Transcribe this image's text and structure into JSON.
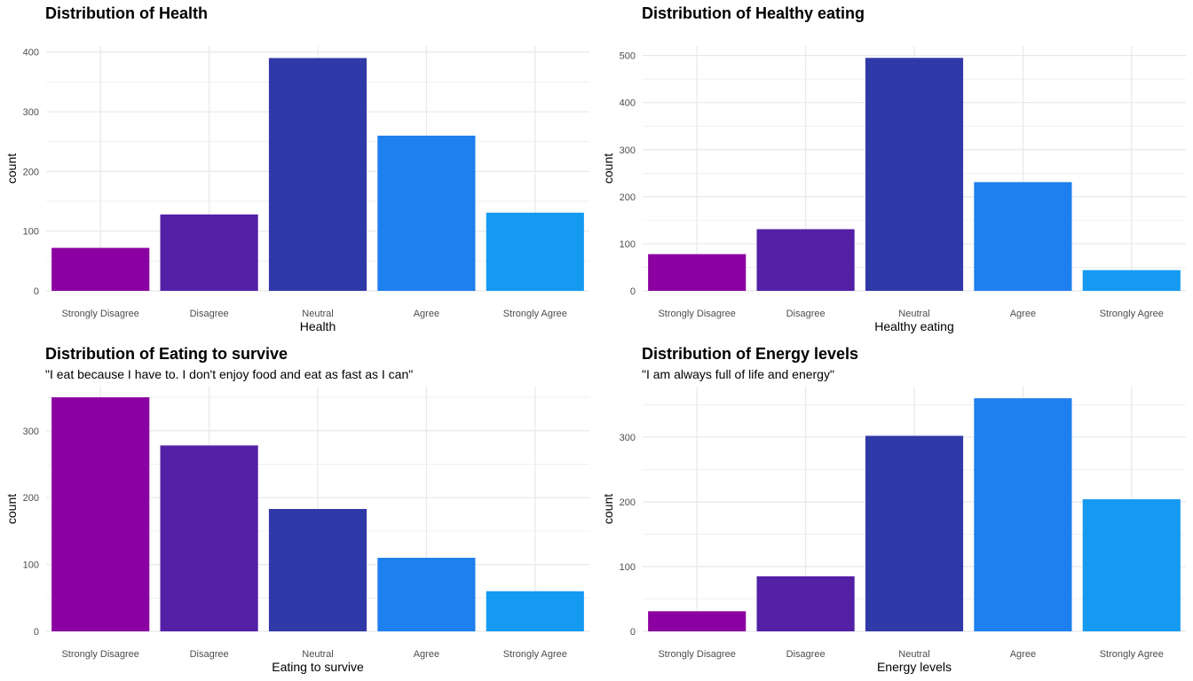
{
  "colors": {
    "Strongly Disagree": "#8B00A0",
    "Disagree": "#5420A6",
    "Neutral": "#3039A8",
    "Agree": "#1E7FEE",
    "Strongly Agree": "#159AF2",
    "grid": "#e6e8ec"
  },
  "chart_data": [
    {
      "type": "bar",
      "title": "Distribution of Health",
      "subtitle": "",
      "xlabel": "Health",
      "ylabel": "count",
      "categories": [
        "Strongly Disagree",
        "Disagree",
        "Neutral",
        "Agree",
        "Strongly Agree"
      ],
      "values": [
        72,
        128,
        390,
        260,
        131
      ],
      "ylim": [
        0,
        410
      ],
      "yticks": [
        0,
        100,
        200,
        300,
        400
      ],
      "grid": true,
      "legend": "none"
    },
    {
      "type": "bar",
      "title": "Distribution of Healthy eating",
      "subtitle": "",
      "xlabel": "Healthy eating",
      "ylabel": "count",
      "categories": [
        "Strongly Disagree",
        "Disagree",
        "Neutral",
        "Agree",
        "Strongly Agree"
      ],
      "values": [
        78,
        131,
        495,
        231,
        44
      ],
      "ylim": [
        0,
        520
      ],
      "yticks": [
        0,
        100,
        200,
        300,
        400,
        500
      ],
      "grid": true,
      "legend": "none"
    },
    {
      "type": "bar",
      "title": "Distribution of Eating to survive",
      "subtitle": "\"I eat because I have to. I don't enjoy food and eat as fast as I can\"",
      "xlabel": "Eating to survive",
      "ylabel": "count",
      "categories": [
        "Strongly Disagree",
        "Disagree",
        "Neutral",
        "Agree",
        "Strongly Agree"
      ],
      "values": [
        350,
        278,
        183,
        110,
        60
      ],
      "ylim": [
        0,
        366
      ],
      "yticks": [
        0,
        100,
        200,
        300
      ],
      "grid": true,
      "legend": "none"
    },
    {
      "type": "bar",
      "title": "Distribution of Energy levels",
      "subtitle": "\"I am always full of life and energy\"",
      "xlabel": "Energy levels",
      "ylabel": "count",
      "categories": [
        "Strongly Disagree",
        "Disagree",
        "Neutral",
        "Agree",
        "Strongly Agree"
      ],
      "values": [
        31,
        85,
        302,
        360,
        204
      ],
      "ylim": [
        0,
        378
      ],
      "yticks": [
        0,
        100,
        200,
        300
      ],
      "grid": true,
      "legend": "none"
    }
  ]
}
